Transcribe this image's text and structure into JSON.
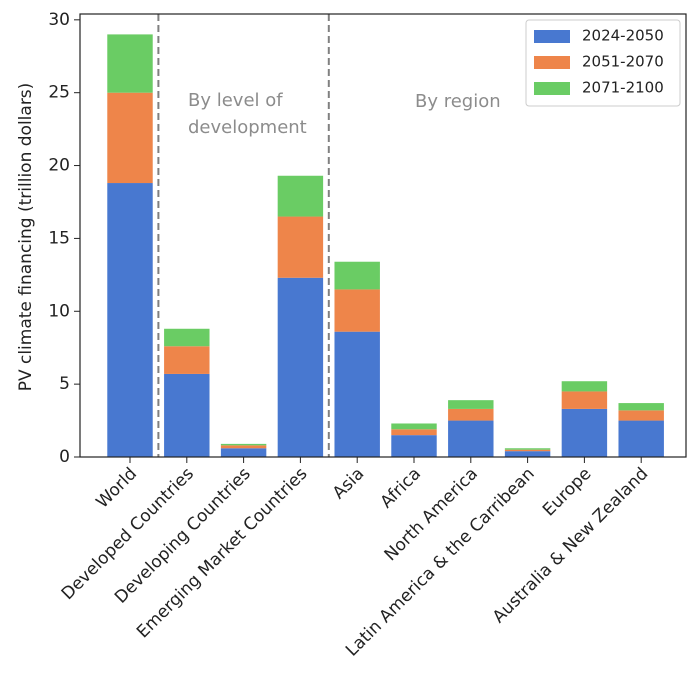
{
  "chart_data": {
    "type": "stacked-bar",
    "y_label": "PV climate financing (trillion dollars)",
    "categories": [
      "World",
      "Developed Countries",
      "Developing Countries",
      "Emerging Market Countries",
      "Asia",
      "Africa",
      "North America",
      "Latin America & the Carribean",
      "Europe",
      "Australia & New Zealand"
    ],
    "series": [
      {
        "name": "2024-2050",
        "color": "#4878d0",
        "values": [
          18.8,
          5.7,
          0.6,
          12.3,
          8.6,
          1.5,
          2.5,
          0.4,
          3.3,
          2.5
        ]
      },
      {
        "name": "2051-2070",
        "color": "#ee854a",
        "values": [
          6.2,
          1.9,
          0.2,
          4.2,
          2.9,
          0.4,
          0.8,
          0.1,
          1.2,
          0.7
        ]
      },
      {
        "name": "2071-2100",
        "color": "#6acc64",
        "values": [
          4.0,
          1.2,
          0.1,
          2.8,
          1.9,
          0.4,
          0.6,
          0.1,
          0.7,
          0.5
        ]
      }
    ],
    "ylim": [
      0,
      30.4
    ],
    "yticks": [
      0,
      5,
      10,
      15,
      20,
      25,
      30
    ],
    "divider_lines": [
      0.5,
      3.5
    ],
    "annotations": [
      [
        "By level of",
        "development"
      ],
      [
        "By region"
      ]
    ],
    "legend": "upper right"
  }
}
